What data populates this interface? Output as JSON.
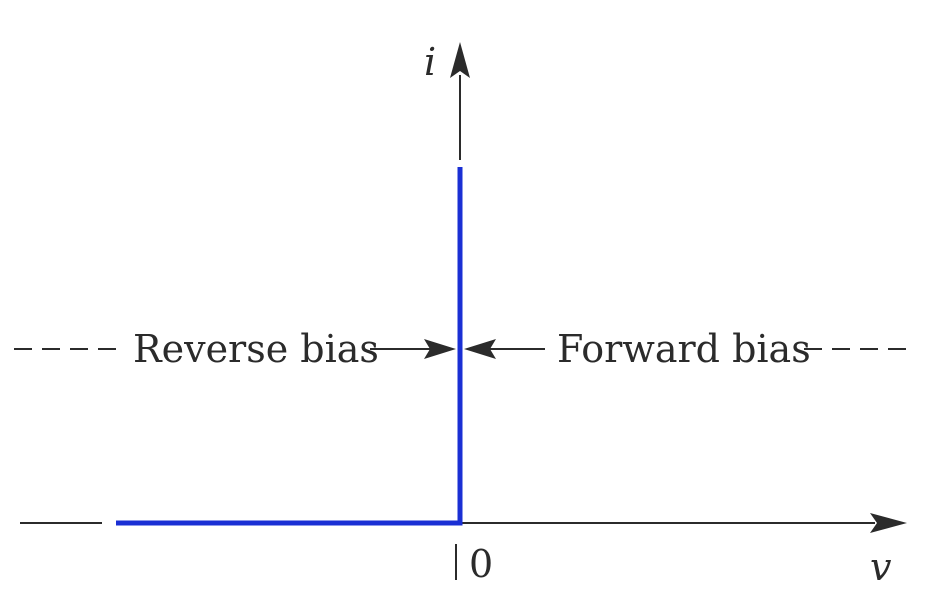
{
  "diagram": {
    "y_axis_label": "i",
    "x_axis_label": "v",
    "origin_label": "0",
    "reverse_label": "Reverse bias",
    "forward_label": "Forward bias",
    "colors": {
      "curve": "#1a2fd4",
      "axis": "#2b2b2b",
      "text": "#2b2b2b"
    }
  }
}
